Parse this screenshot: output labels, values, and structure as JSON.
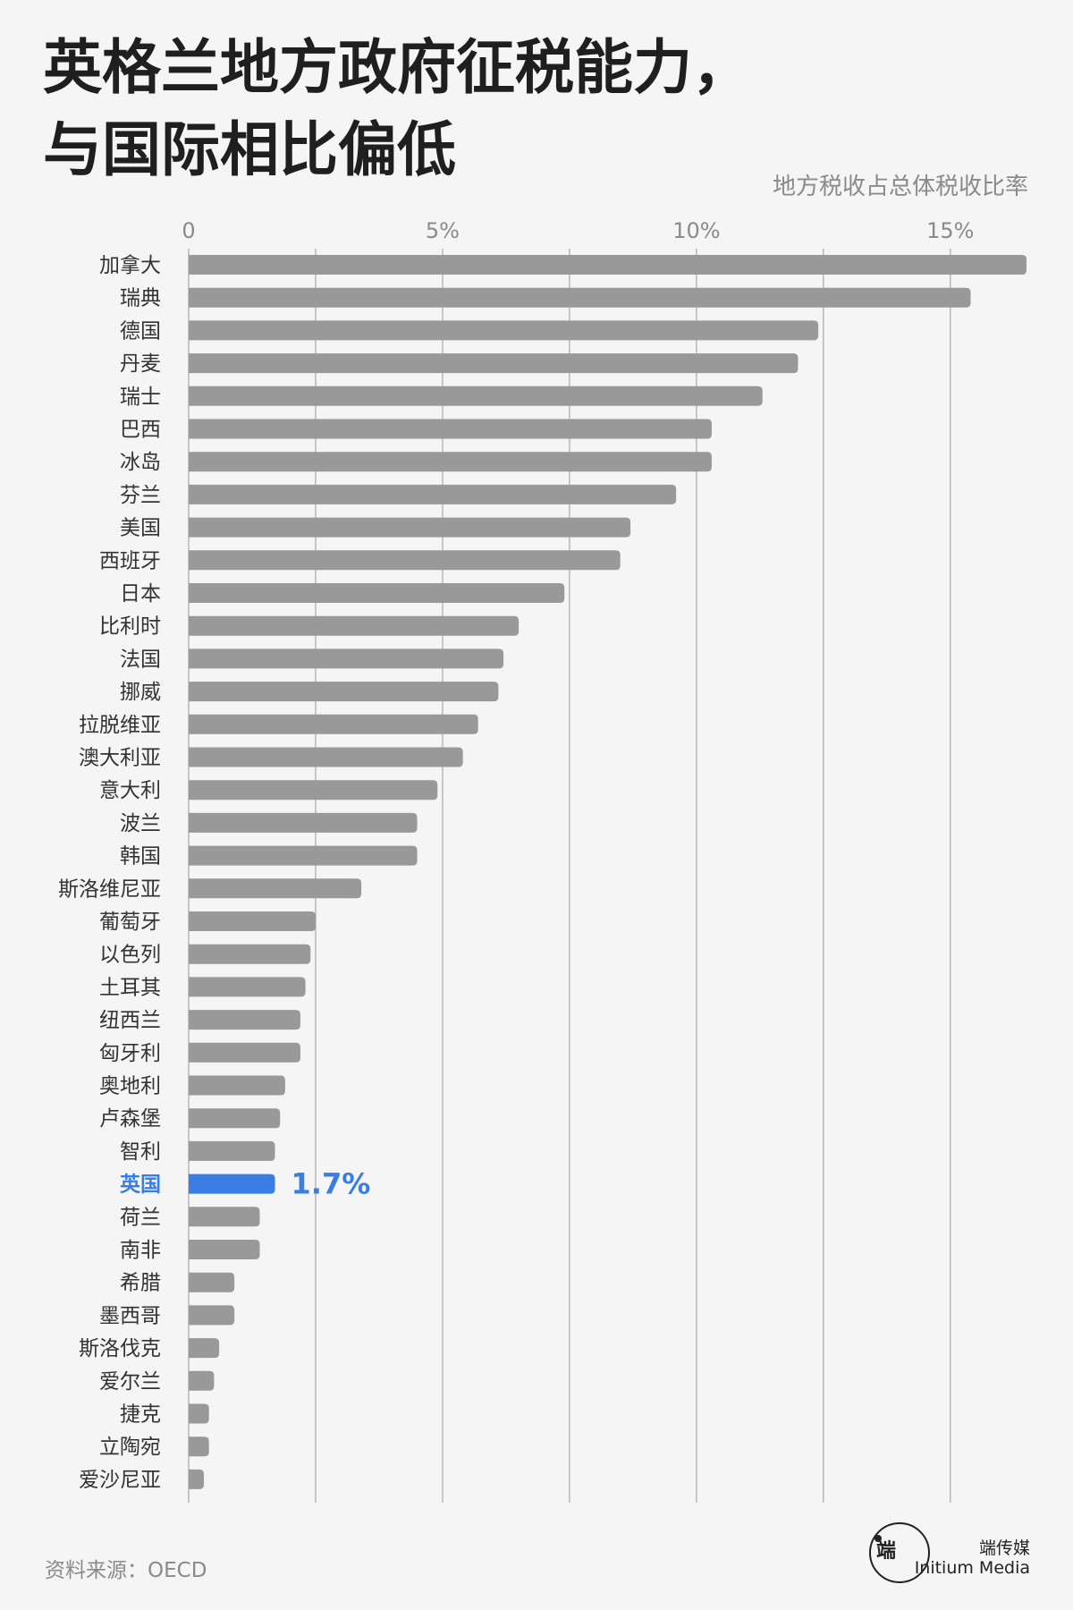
{
  "title_lines": [
    "英格兰地方政府征税能力，",
    "与国际相比偏低"
  ],
  "source": "资料来源：OECD",
  "brand": {
    "logo_glyph": "端",
    "name_cn": "端传媒",
    "name_en": "Initium Media"
  },
  "colors": {
    "bar": "#999999",
    "highlight": "#3a7ee4",
    "grid": "#a8a8a8",
    "tick": "#8a8a8a",
    "label": "#333333"
  },
  "chart_data": {
    "type": "bar",
    "orientation": "horizontal",
    "title": "英格兰地方政府征税能力，与国际相比偏低",
    "subtitle": "地方税收占总体税收比率",
    "xlabel": "",
    "ylabel": "",
    "xlim": [
      0,
      16.5
    ],
    "xticks": [
      0,
      5,
      10,
      15
    ],
    "xtick_labels": [
      "0",
      "5%",
      "10%",
      "15%"
    ],
    "gridlines": [
      2.5,
      5,
      7.5,
      10,
      12.5,
      15
    ],
    "highlight": {
      "category": "英国",
      "label": "1.7%"
    },
    "categories": [
      "加拿大",
      "瑞典",
      "德国",
      "丹麦",
      "瑞士",
      "巴西",
      "冰岛",
      "芬兰",
      "美国",
      "西班牙",
      "日本",
      "比利时",
      "法国",
      "挪威",
      "拉脱维亚",
      "澳大利亚",
      "意大利",
      "波兰",
      "韩国",
      "斯洛维尼亚",
      "葡萄牙",
      "以色列",
      "土耳其",
      "纽西兰",
      "匈牙利",
      "奥地利",
      "卢森堡",
      "智利",
      "英国",
      "荷兰",
      "南非",
      "希腊",
      "墨西哥",
      "斯洛伐克",
      "爱尔兰",
      "捷克",
      "立陶宛",
      "爱沙尼亚"
    ],
    "values": [
      16.5,
      15.4,
      12.4,
      12.0,
      11.3,
      10.3,
      10.3,
      9.6,
      8.7,
      8.5,
      7.4,
      6.5,
      6.2,
      6.1,
      5.7,
      5.4,
      4.9,
      4.5,
      4.5,
      3.4,
      2.5,
      2.4,
      2.3,
      2.2,
      2.2,
      1.9,
      1.8,
      1.7,
      1.7,
      1.4,
      1.4,
      0.9,
      0.9,
      0.6,
      0.5,
      0.4,
      0.4,
      0.3
    ]
  }
}
